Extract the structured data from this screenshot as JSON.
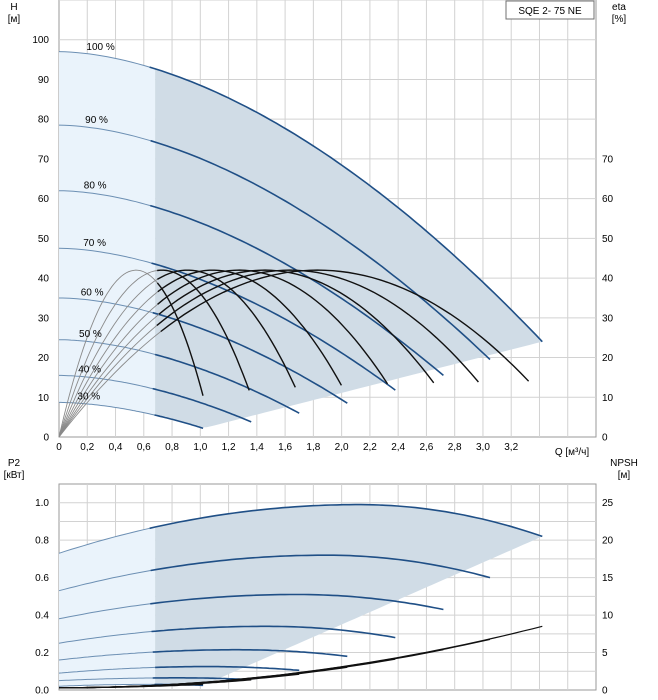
{
  "chart_data": [
    {
      "type": "line",
      "model_label": "SQE 2- 75 NE",
      "left_axis": {
        "title_lines": [
          "H",
          "[м]"
        ],
        "ylim": [
          0,
          110
        ],
        "ticks": [
          0,
          10,
          20,
          30,
          40,
          50,
          60,
          70,
          80,
          90,
          100
        ]
      },
      "right_axis": {
        "title_lines": [
          "eta",
          "[%]"
        ],
        "ylim": [
          0,
          110
        ],
        "ticks": [
          0,
          10,
          20,
          30,
          40,
          50,
          60,
          70
        ]
      },
      "x_axis": {
        "label": "Q [м³/ч]",
        "xlim": [
          0,
          3.8
        ],
        "ticks": [
          "0",
          "0,2",
          "0,4",
          "0,6",
          "0,8",
          "1,0",
          "1,2",
          "1,4",
          "1,6",
          "1,8",
          "2,0",
          "2,2",
          "2,4",
          "2,6",
          "2,8",
          "3,0",
          "3,2"
        ]
      },
      "grid": true,
      "series": [
        {
          "name": "100 %",
          "q_max": 3.42,
          "h0": 97.0,
          "h_end": 24.0
        },
        {
          "name": "90 %",
          "q_max": 3.05,
          "h0": 78.5,
          "h_end": 19.5
        },
        {
          "name": "80 %",
          "q_max": 2.72,
          "h0": 62.0,
          "h_end": 15.5
        },
        {
          "name": "70 %",
          "q_max": 2.38,
          "h0": 47.5,
          "h_end": 11.8
        },
        {
          "name": "60 %",
          "q_max": 2.04,
          "h0": 35.0,
          "h_end": 8.5
        },
        {
          "name": "50 %",
          "q_max": 1.7,
          "h0": 24.5,
          "h_end": 6.0
        },
        {
          "name": "40 %",
          "q_max": 1.36,
          "h0": 15.5,
          "h_end": 3.8
        },
        {
          "name": "30 %",
          "q_max": 1.02,
          "h0": 8.7,
          "h_end": 2.2
        }
      ],
      "efficiency_peak": 42,
      "curve_label_q": [
        0.18,
        0.16,
        0.14,
        0.13,
        0.1,
        0.08,
        0.07,
        0.06
      ]
    },
    {
      "type": "line",
      "left_axis": {
        "title_lines": [
          "P2",
          "[кВт]"
        ],
        "ylim": [
          0,
          1.1
        ],
        "ticks": [
          "0.0",
          "0.2",
          "0.4",
          "0.6",
          "0.8",
          "1.0"
        ]
      },
      "right_axis": {
        "title_lines": [
          "NPSH",
          "[м]"
        ],
        "ylim": [
          0,
          27.5
        ],
        "ticks": [
          "0",
          "5",
          "10",
          "15",
          "20",
          "25"
        ]
      },
      "x_axis": {
        "xlim": [
          0,
          3.8
        ]
      },
      "grid": true,
      "power_series": [
        {
          "p0": 0.73,
          "pmax": 0.99,
          "q_max": 3.42,
          "p_end": 0.82
        },
        {
          "p0": 0.53,
          "pmax": 0.72,
          "q_max": 3.05,
          "p_end": 0.6
        },
        {
          "p0": 0.38,
          "pmax": 0.51,
          "q_max": 2.72,
          "p_end": 0.43
        },
        {
          "p0": 0.25,
          "pmax": 0.34,
          "q_max": 2.38,
          "p_end": 0.28
        },
        {
          "p0": 0.16,
          "pmax": 0.215,
          "q_max": 2.04,
          "p_end": 0.18
        },
        {
          "p0": 0.09,
          "pmax": 0.125,
          "q_max": 1.7,
          "p_end": 0.105
        },
        {
          "p0": 0.05,
          "pmax": 0.065,
          "q_max": 1.36,
          "p_end": 0.055
        },
        {
          "p0": 0.02,
          "pmax": 0.03,
          "q_max": 1.02,
          "p_end": 0.025
        }
      ],
      "npsh_end": 8.5
    }
  ]
}
